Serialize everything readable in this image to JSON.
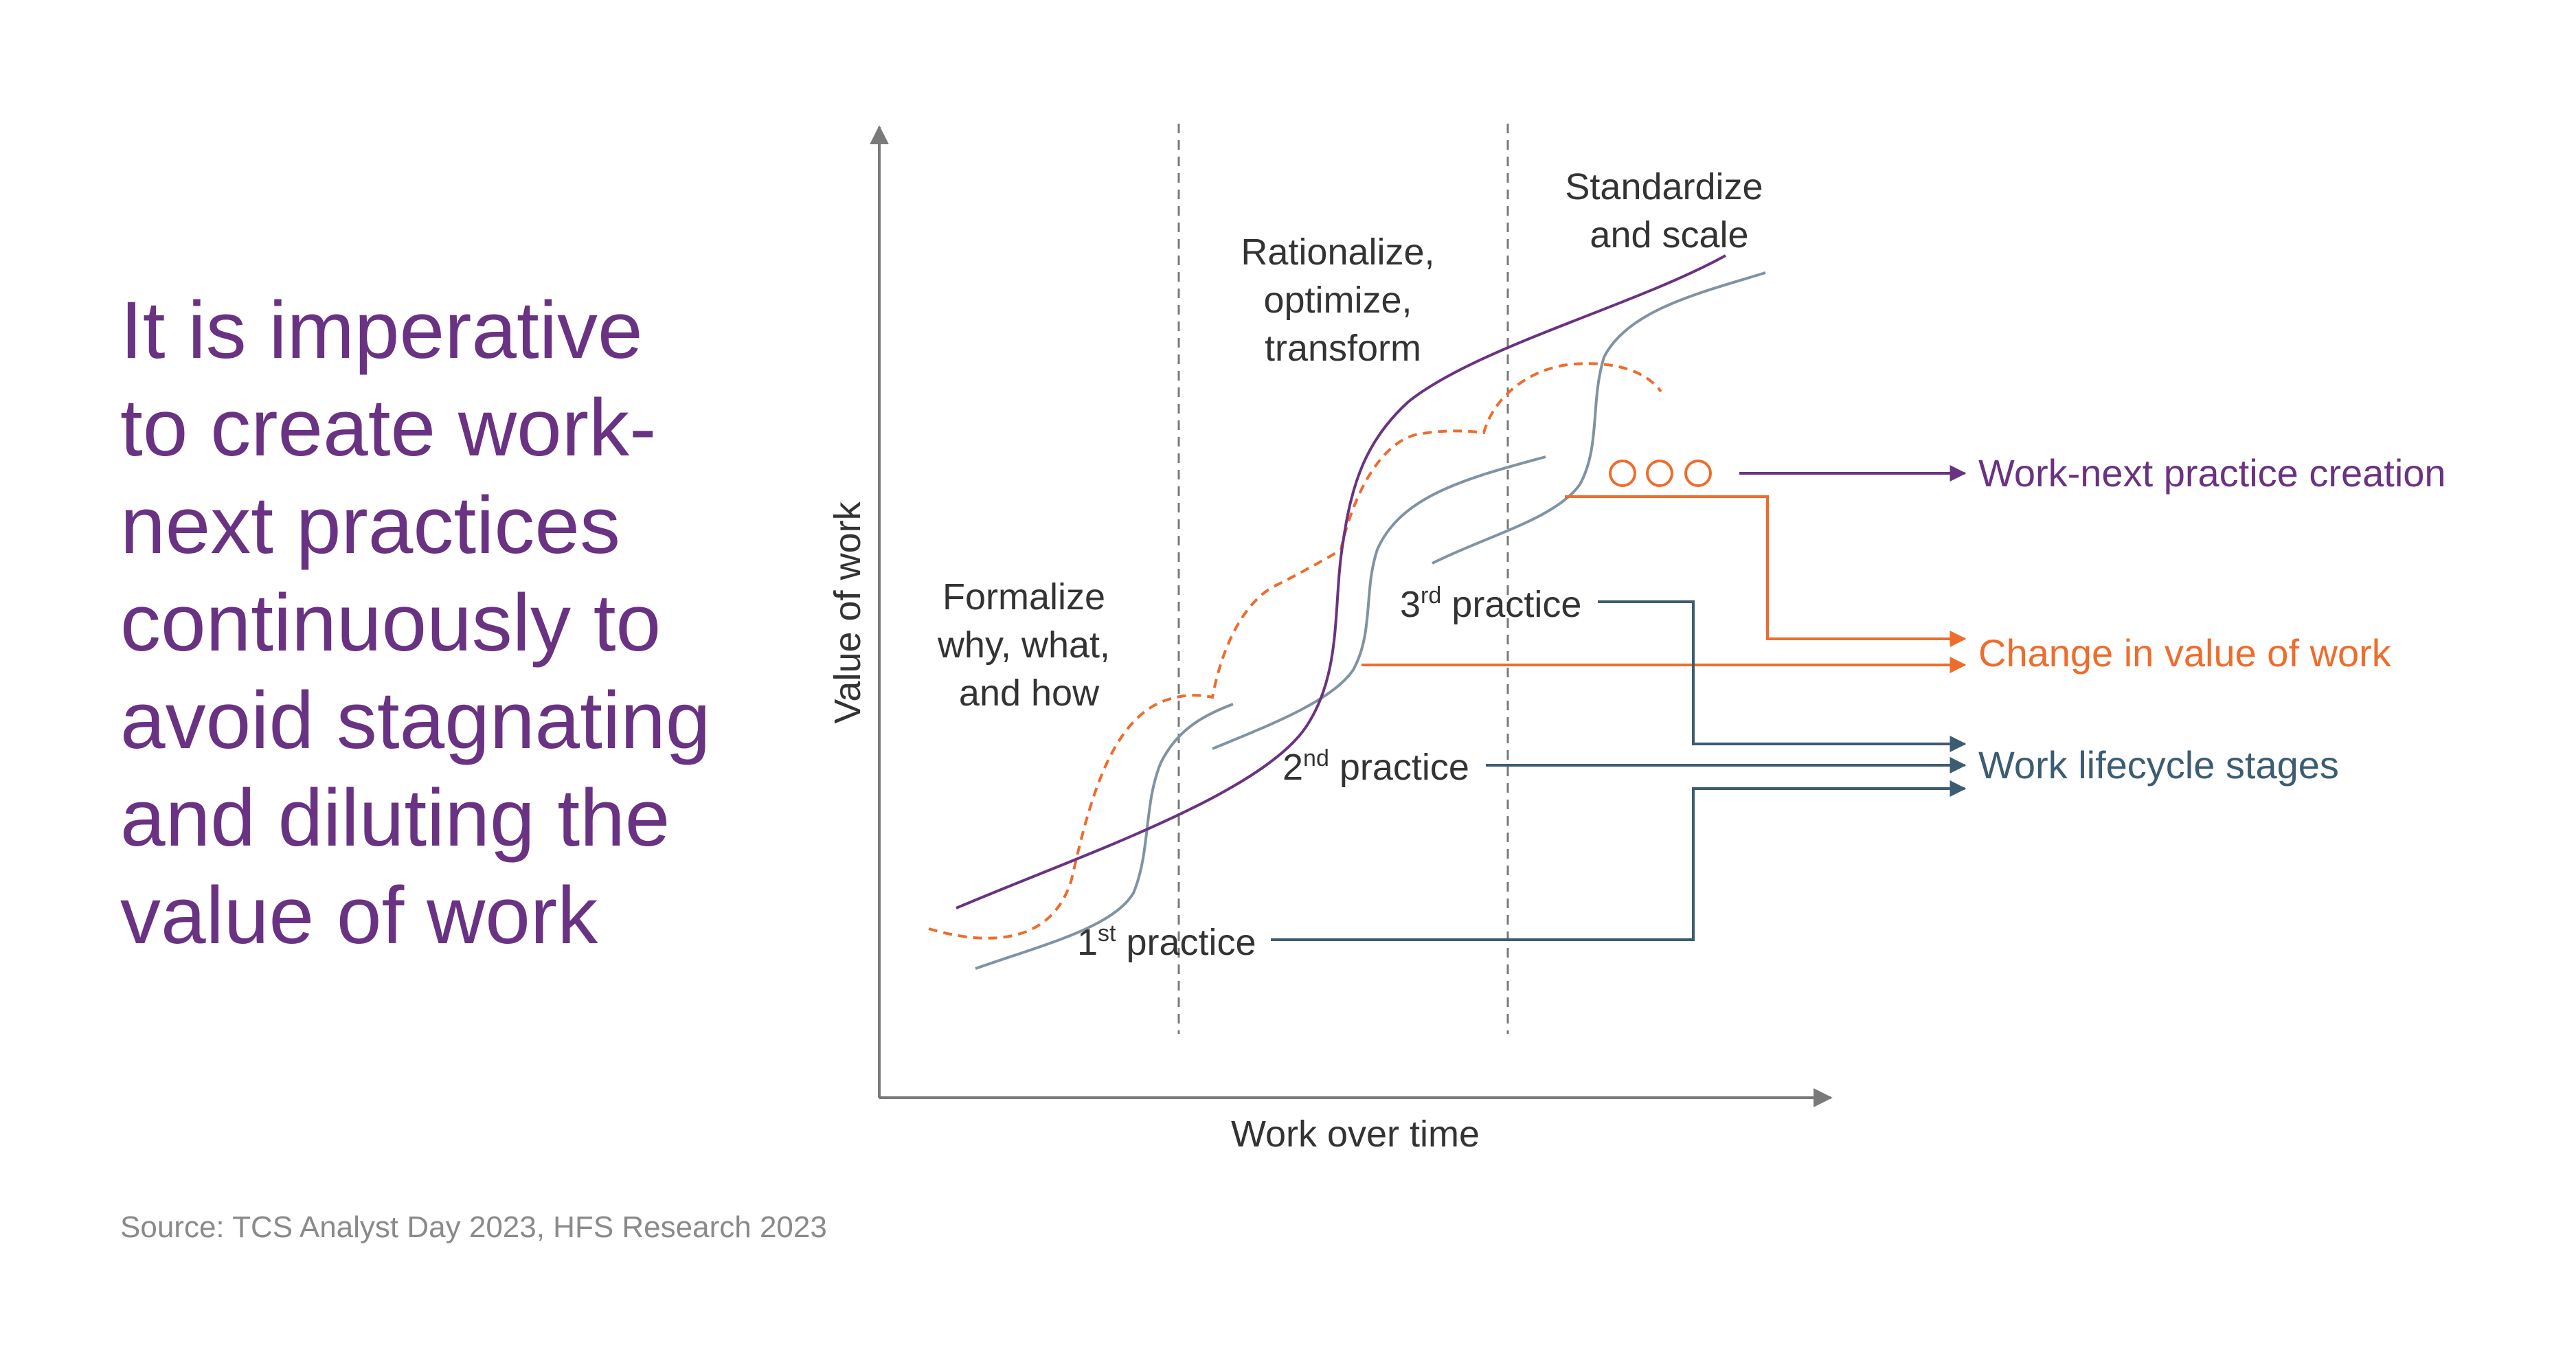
{
  "headline": {
    "lines": [
      "It is imperative",
      "to create work-",
      "next practices",
      "continuously to",
      "avoid stagnating",
      "and diluting the",
      "value of work"
    ]
  },
  "source": "Source: TCS Analyst Day 2023, HFS Research 2023",
  "diagram": {
    "y_axis_label": "Value of work",
    "x_axis_label": "Work over time",
    "stages": {
      "formalize": [
        "Formalize",
        "why, what,",
        "and how"
      ],
      "rationalize": [
        "Rationalize,",
        "optimize,",
        "transform"
      ],
      "standardize": [
        "Standardize",
        "and scale"
      ]
    },
    "practices": {
      "first": {
        "num": "1",
        "sup": "st",
        "text": " practice"
      },
      "second": {
        "num": "2",
        "sup": "nd",
        "text": " practice"
      },
      "third": {
        "num": "3",
        "sup": "rd",
        "text": " practice"
      }
    },
    "legend": {
      "work_next": "Work-next practice creation",
      "change_value": "Change in value of work",
      "lifecycle": "Work lifecycle stages"
    },
    "colors": {
      "purple": "#6a3282",
      "orange": "#ee6c2c",
      "teal": "#3c5c72",
      "gray_curve": "#7f93a3",
      "axis": "#7a7a7a"
    }
  }
}
